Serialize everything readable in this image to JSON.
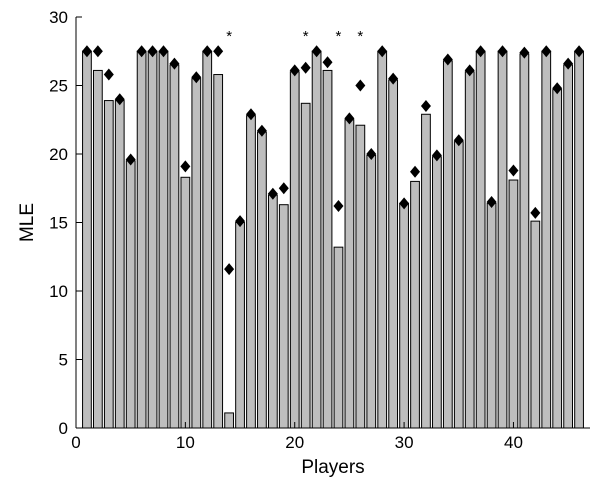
{
  "chart_data": {
    "type": "bar",
    "title": "",
    "xlabel": "Players",
    "ylabel": "MLE",
    "xlim": [
      0,
      47
    ],
    "ylim": [
      0,
      30
    ],
    "xticks": [
      0,
      10,
      20,
      30,
      40
    ],
    "yticks": [
      0,
      5,
      10,
      15,
      20,
      25,
      30
    ],
    "grid": false,
    "legend": "none",
    "x": [
      1,
      2,
      3,
      4,
      5,
      6,
      7,
      8,
      9,
      10,
      11,
      12,
      13,
      14,
      15,
      16,
      17,
      18,
      19,
      20,
      21,
      22,
      23,
      24,
      25,
      26,
      27,
      28,
      29,
      30,
      31,
      32,
      33,
      34,
      35,
      36,
      37,
      38,
      39,
      40,
      41,
      42,
      43,
      44,
      45,
      46
    ],
    "series": [
      {
        "marker": "bar",
        "values": [
          27.5,
          26.1,
          23.9,
          23.9,
          19.5,
          27.5,
          27.5,
          27.5,
          26.5,
          18.3,
          25.5,
          27.5,
          25.8,
          1.1,
          15.0,
          22.8,
          21.6,
          17.0,
          16.3,
          26.0,
          23.7,
          27.5,
          26.1,
          13.2,
          22.5,
          22.1,
          19.9,
          27.5,
          25.4,
          16.4,
          18.0,
          22.9,
          19.8,
          26.8,
          20.9,
          26.0,
          27.5,
          16.4,
          27.5,
          18.1,
          27.3,
          15.1,
          27.5,
          24.7,
          26.5,
          27.5
        ]
      },
      {
        "marker": "diamond",
        "values": [
          27.5,
          27.5,
          25.8,
          24.0,
          19.6,
          27.5,
          27.5,
          27.5,
          26.6,
          19.1,
          25.6,
          27.5,
          27.5,
          11.6,
          15.1,
          22.9,
          21.7,
          17.1,
          17.5,
          26.1,
          26.3,
          27.5,
          26.7,
          16.2,
          22.6,
          25.0,
          20.0,
          27.5,
          25.5,
          16.4,
          18.7,
          23.5,
          19.9,
          26.9,
          21.0,
          26.1,
          27.5,
          16.5,
          27.5,
          18.8,
          27.4,
          15.7,
          27.5,
          24.8,
          26.6,
          27.5
        ]
      }
    ],
    "star_color": "#000000",
    "annotations": [
      {
        "text": "*",
        "x": 14
      },
      {
        "text": "*",
        "x": 21
      },
      {
        "text": "*",
        "x": 24
      },
      {
        "text": "*",
        "x": 26
      }
    ],
    "colors": {
      "bar_fill": "#bebebe",
      "bar_edge": "#000000",
      "marker": "#000000",
      "axis": "#000000"
    }
  }
}
